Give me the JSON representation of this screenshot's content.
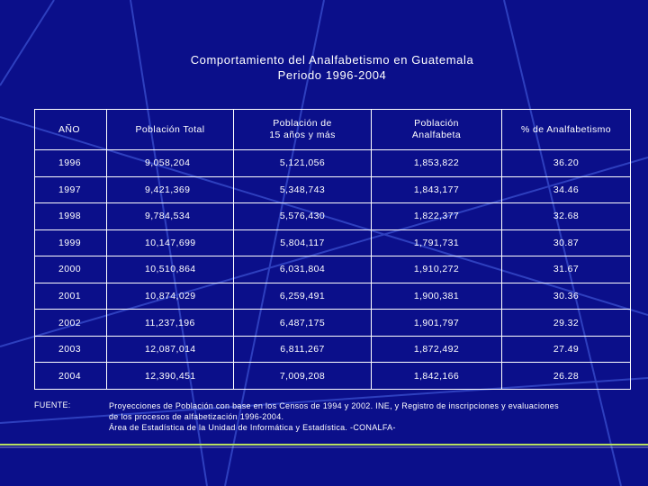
{
  "colors": {
    "background": "#0b0f8a",
    "text": "#ffffff",
    "lines": "#3a50d0",
    "bottom_line": "#b8e060"
  },
  "title": {
    "line1": "Comportamiento del Analfabetismo en Guatemala",
    "line2": "Periodo 1996-2004"
  },
  "table": {
    "headers": [
      [
        "AÑO"
      ],
      [
        "Población Total"
      ],
      [
        "Población de",
        "15 años y más"
      ],
      [
        "Población",
        "Analfabeta"
      ],
      [
        "% de Analfabetismo"
      ]
    ],
    "rows": [
      [
        "1996",
        "9,058,204",
        "5,121,056",
        "1,853,822",
        "36.20"
      ],
      [
        "1997",
        "9,421,369",
        "5,348,743",
        "1,843,177",
        "34.46"
      ],
      [
        "1998",
        "9,784,534",
        "5,576,430",
        "1,822,377",
        "32.68"
      ],
      [
        "1999",
        "10,147,699",
        "5,804,117",
        "1,791,731",
        "30.87"
      ],
      [
        "2000",
        "10,510,864",
        "6,031,804",
        "1,910,272",
        "31.67"
      ],
      [
        "2001",
        "10,874,029",
        "6,259,491",
        "1,900,381",
        "30.36"
      ],
      [
        "2002",
        "11,237,196",
        "6,487,175",
        "1,901,797",
        "29.32"
      ],
      [
        "2003",
        "12,087,014",
        "6,811,267",
        "1,872,492",
        "27.49"
      ],
      [
        "2004",
        "12,390,451",
        "7,009,208",
        "1,842,166",
        "26.28"
      ]
    ]
  },
  "source": {
    "label": "FUENTE:",
    "lines": [
      "Proyecciones de Población con base en los Censos de  1994 y 2002. INE, y   Registro de inscripciones y evaluaciones",
      "de los procesos de alfabetización 1996-2004.",
      "Área de Estadística de la Unidad de Informática y Estadística. -CONALFA-"
    ]
  }
}
